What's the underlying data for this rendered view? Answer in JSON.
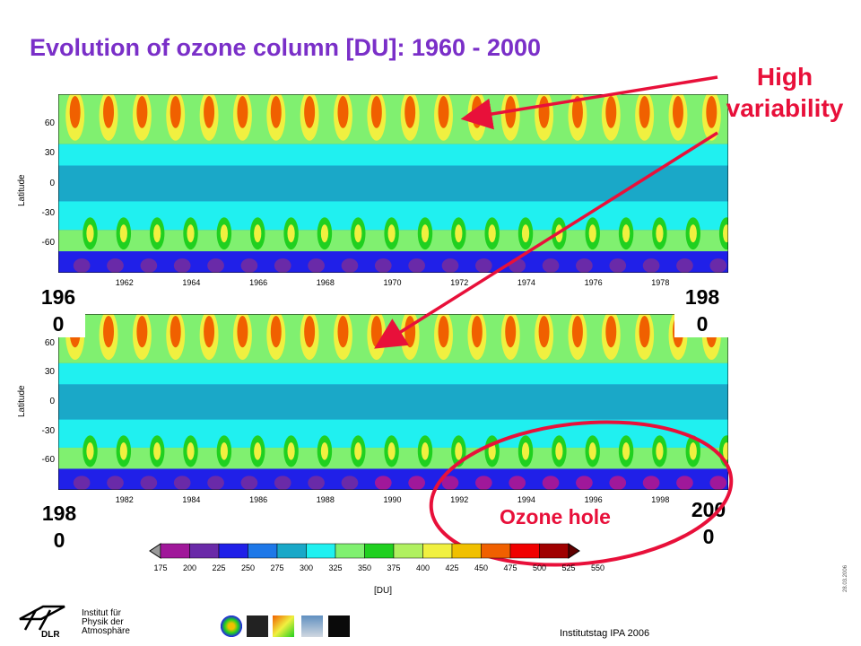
{
  "slide": {
    "title": "Evolution of ozone column [DU]: 1960 - 2000",
    "annotation_high": "High variability",
    "annotation_high_line1": "High",
    "annotation_high_line2": "variability",
    "annotation_hole": "Ozone hole",
    "year_1960": "196\n0",
    "year_1980_top": "198\n0",
    "year_1980_bottom": "198\n0",
    "year_2000": "200\n0",
    "institute_line1": "Institut für",
    "institute_line2": "Physik der",
    "institute_line3": "Atmosphäre",
    "logo_text": "DLR",
    "footer": "Institutstag IPA 2006",
    "date": "28.03.2006",
    "accent_color": "#e8103a",
    "title_color": "#7a2fc8"
  },
  "chart_data": [
    {
      "type": "heatmap",
      "ylabel": "Latitude",
      "y_ticks": [
        "60",
        "30",
        "0",
        "-30",
        "-60"
      ],
      "x_ticks": [
        "1962",
        "1964",
        "1966",
        "1968",
        "1970",
        "1972",
        "1974",
        "1976",
        "1978"
      ],
      "x_range": [
        1960,
        1980
      ],
      "y_range": [
        -90,
        90
      ]
    },
    {
      "type": "heatmap",
      "ylabel": "Latitude",
      "y_ticks": [
        "60",
        "30",
        "0",
        "-30",
        "-60"
      ],
      "x_ticks": [
        "1982",
        "1984",
        "1986",
        "1988",
        "1990",
        "1992",
        "1994",
        "1996",
        "1998"
      ],
      "x_range": [
        1980,
        2000
      ],
      "y_range": [
        -90,
        90
      ]
    }
  ],
  "colorbar": {
    "unit": "[DU]",
    "ticks": [
      "175",
      "200",
      "225",
      "250",
      "275",
      "300",
      "325",
      "350",
      "375",
      "400",
      "425",
      "450",
      "475",
      "500",
      "525",
      "550"
    ],
    "colors": [
      "#9a9a9a",
      "#a0189a",
      "#6a2aa8",
      "#2020e8",
      "#1e78e8",
      "#1aa8c8",
      "#20f0f0",
      "#80f070",
      "#20d020",
      "#b0f060",
      "#f0f040",
      "#f0c000",
      "#f06000",
      "#f00000",
      "#a00000",
      "#600000"
    ]
  }
}
